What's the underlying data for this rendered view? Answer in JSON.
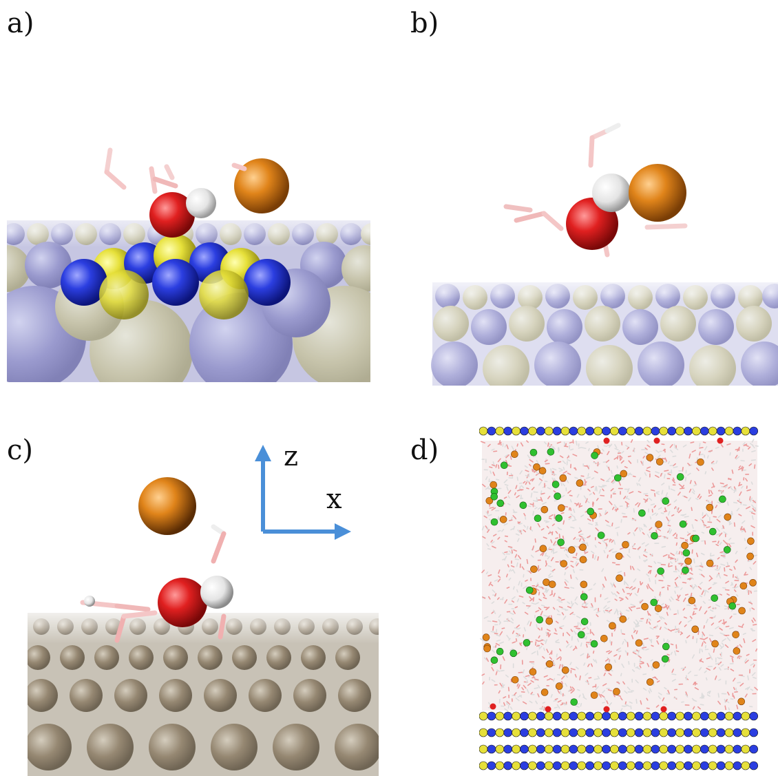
{
  "panels": [
    {
      "label": "a)"
    },
    {
      "label": "b)"
    },
    {
      "label": "c)"
    },
    {
      "label": "d)"
    }
  ],
  "axes": {
    "z_label": "z",
    "x_label": "x",
    "arrow_color": "#4a8fd8"
  },
  "colors": {
    "blue_atom": "#2b3ee0",
    "yellow_atom": "#e6e03a",
    "oxygen": "#e02020",
    "hydrogen": "#f0f0f0",
    "bromide": "#e0841a",
    "chloride": "#30c030",
    "metal": "#8a7a62",
    "substrate_haze": "#b8b8e0"
  }
}
